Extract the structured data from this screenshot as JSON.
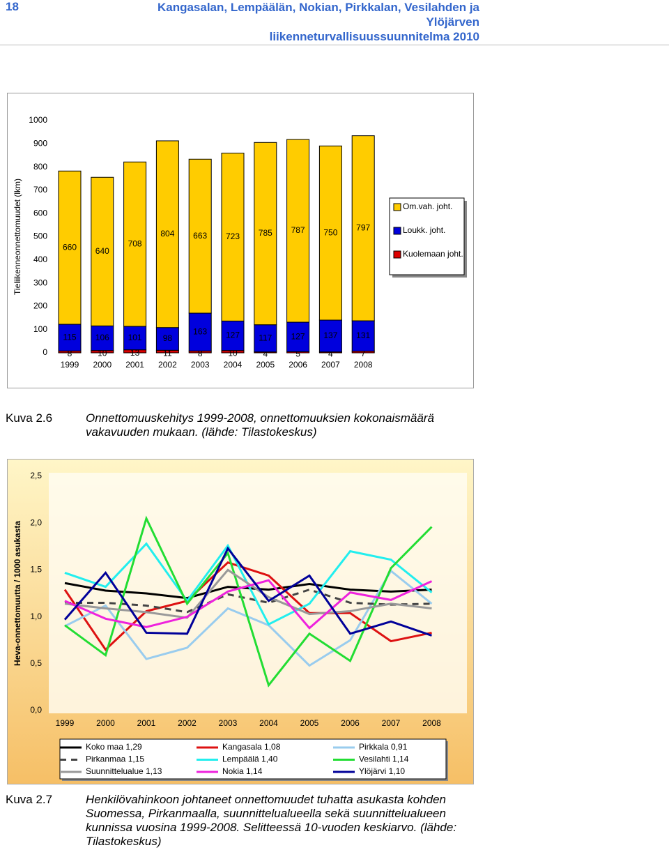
{
  "header": {
    "page": "18",
    "title_lines": [
      "Kangasalan, Lempäälän, Nokian, Pirkkalan, Vesilahden ja Ylöjärven",
      "liikenneturvallisuussuunnitelma 2010"
    ]
  },
  "chart_data": [
    {
      "type": "stacked-bar",
      "y_label": "Tieliikenneonnettomuudet (lkm)",
      "categories": [
        "1999",
        "2000",
        "2001",
        "2002",
        "2003",
        "2004",
        "2005",
        "2006",
        "2007",
        "2008"
      ],
      "series": [
        {
          "name": "Kuolemaan joht.",
          "color": "#dd0000",
          "values": [
            8,
            10,
            13,
            11,
            8,
            10,
            4,
            5,
            4,
            7
          ]
        },
        {
          "name": "Loukk. joht.",
          "color": "#0000dd",
          "values": [
            115,
            106,
            101,
            98,
            163,
            127,
            117,
            127,
            137,
            131
          ]
        },
        {
          "name": "Om.vah. joht.",
          "color": "#ffcc00",
          "values": [
            660,
            640,
            708,
            804,
            663,
            723,
            785,
            787,
            750,
            797
          ]
        }
      ],
      "legend_order": [
        2,
        1,
        0
      ],
      "ylim": [
        0,
        1000
      ],
      "yticks": [
        0,
        100,
        200,
        300,
        400,
        500,
        600,
        700,
        800,
        900,
        1000
      ]
    },
    {
      "type": "line",
      "y_label": "Heva-onnettomuutta / 1000 asukasta",
      "categories": [
        "1999",
        "2000",
        "2001",
        "2002",
        "2003",
        "2004",
        "2005",
        "2006",
        "2007",
        "2008"
      ],
      "series": [
        {
          "name": "Koko maa 1,29",
          "color": "#000000",
          "values": [
            1.36,
            1.28,
            1.25,
            1.2,
            1.32,
            1.29,
            1.35,
            1.29,
            1.27,
            1.29
          ]
        },
        {
          "name": "Kangasala 1,08",
          "color": "#dd1111",
          "values": [
            1.29,
            0.65,
            1.06,
            1.17,
            1.58,
            1.44,
            1.04,
            1.04,
            0.74,
            0.83
          ]
        },
        {
          "name": "Pirkkala 0,91",
          "color": "#99ccee",
          "values": [
            0.9,
            1.12,
            0.55,
            0.67,
            1.09,
            0.91,
            0.48,
            0.75,
            1.49,
            1.14
          ]
        },
        {
          "name": "Pirkanmaa 1,15",
          "color": "#444444",
          "dashed": true,
          "values": [
            1.15,
            1.15,
            1.12,
            1.05,
            1.24,
            1.15,
            1.29,
            1.15,
            1.13,
            1.14
          ]
        },
        {
          "name": "Lempäälä 1,40",
          "color": "#22eeee",
          "values": [
            1.47,
            1.32,
            1.78,
            1.17,
            1.76,
            0.92,
            1.14,
            1.7,
            1.61,
            1.26
          ]
        },
        {
          "name": "Vesilahti 1,14",
          "color": "#22dd33",
          "values": [
            0.91,
            0.59,
            2.05,
            1.14,
            1.68,
            0.27,
            0.82,
            0.53,
            1.52,
            1.96
          ]
        },
        {
          "name": "Suunnittelualue 1,13",
          "color": "#999999",
          "values": [
            1.14,
            1.09,
            1.05,
            0.99,
            1.5,
            1.21,
            1.03,
            1.06,
            1.14,
            1.09
          ]
        },
        {
          "name": "Nokia 1,14",
          "color": "#ee22dd",
          "values": [
            1.17,
            0.98,
            0.89,
            1.0,
            1.27,
            1.39,
            0.88,
            1.26,
            1.18,
            1.38
          ]
        },
        {
          "name": "Ylöjärvi 1,10",
          "color": "#000099",
          "values": [
            0.97,
            1.47,
            0.83,
            0.82,
            1.73,
            1.17,
            1.44,
            0.82,
            0.95,
            0.8
          ]
        }
      ],
      "ylim": [
        0,
        2.5
      ],
      "yticks": [
        {
          "value": 0,
          "label": "0,0"
        },
        {
          "value": 0.5,
          "label": "0,5"
        },
        {
          "value": 1,
          "label": "1,0"
        },
        {
          "value": 1.5,
          "label": "1,5"
        },
        {
          "value": 2,
          "label": "2,0"
        },
        {
          "value": 2.5,
          "label": "2,5"
        }
      ]
    }
  ],
  "captions": [
    {
      "label": "Kuva 2.6",
      "text": "Onnettomuuskehitys 1999-2008, onnettomuuksien kokonaismäärä vakavuuden mukaan. (lähde: Tilastokeskus)"
    },
    {
      "label": "Kuva 2.7",
      "text": "Henkilövahinkoon johtaneet onnettomuudet tuhatta asukasta kohden Suomessa, Pirkanmaalla, suunnittelualueella sekä suunnittelualueen kunnissa vuosina 1999-2008. Selitteessä 10-vuoden keskiarvo. (lähde: Tilastokeskus)"
    }
  ]
}
